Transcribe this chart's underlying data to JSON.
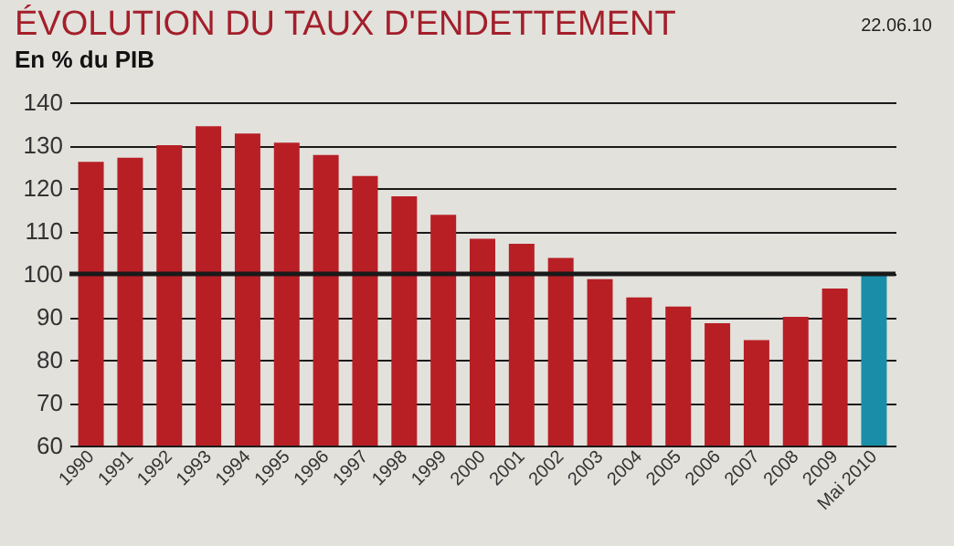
{
  "chart_data": {
    "type": "bar",
    "title": "ÉVOLUTION DU TAUX D'ENDETTEMENT",
    "subtitle": "En % du PIB",
    "annotations": [
      "22.06.10"
    ],
    "categories": [
      "1990",
      "1991",
      "1992",
      "1993",
      "1994",
      "1995",
      "1996",
      "1997",
      "1998",
      "1999",
      "2000",
      "2001",
      "2002",
      "2003",
      "2004",
      "2005",
      "2006",
      "2007",
      "2008",
      "2009",
      "Mai 2010"
    ],
    "values": [
      126.1,
      127.1,
      130,
      134.4,
      132.7,
      130.6,
      127.7,
      122.8,
      118.1,
      113.8,
      108.2,
      107,
      103.7,
      98.8,
      94.5,
      92.4,
      88.5,
      84.6,
      90,
      96.6,
      100
    ],
    "colors": [
      "#b81f25",
      "#b81f25",
      "#b81f25",
      "#b81f25",
      "#b81f25",
      "#b81f25",
      "#b81f25",
      "#b81f25",
      "#b81f25",
      "#b81f25",
      "#b81f25",
      "#b81f25",
      "#b81f25",
      "#b81f25",
      "#b81f25",
      "#b81f25",
      "#b81f25",
      "#b81f25",
      "#b81f25",
      "#b81f25",
      "#1a8ea8"
    ],
    "ylim": [
      60,
      140
    ],
    "yticks": [
      60,
      70,
      80,
      90,
      100,
      110,
      120,
      130,
      140
    ],
    "grid": "y",
    "ref_lines": [
      {
        "axis": "y",
        "value": 100,
        "color": "#1a1a1a"
      }
    ]
  }
}
